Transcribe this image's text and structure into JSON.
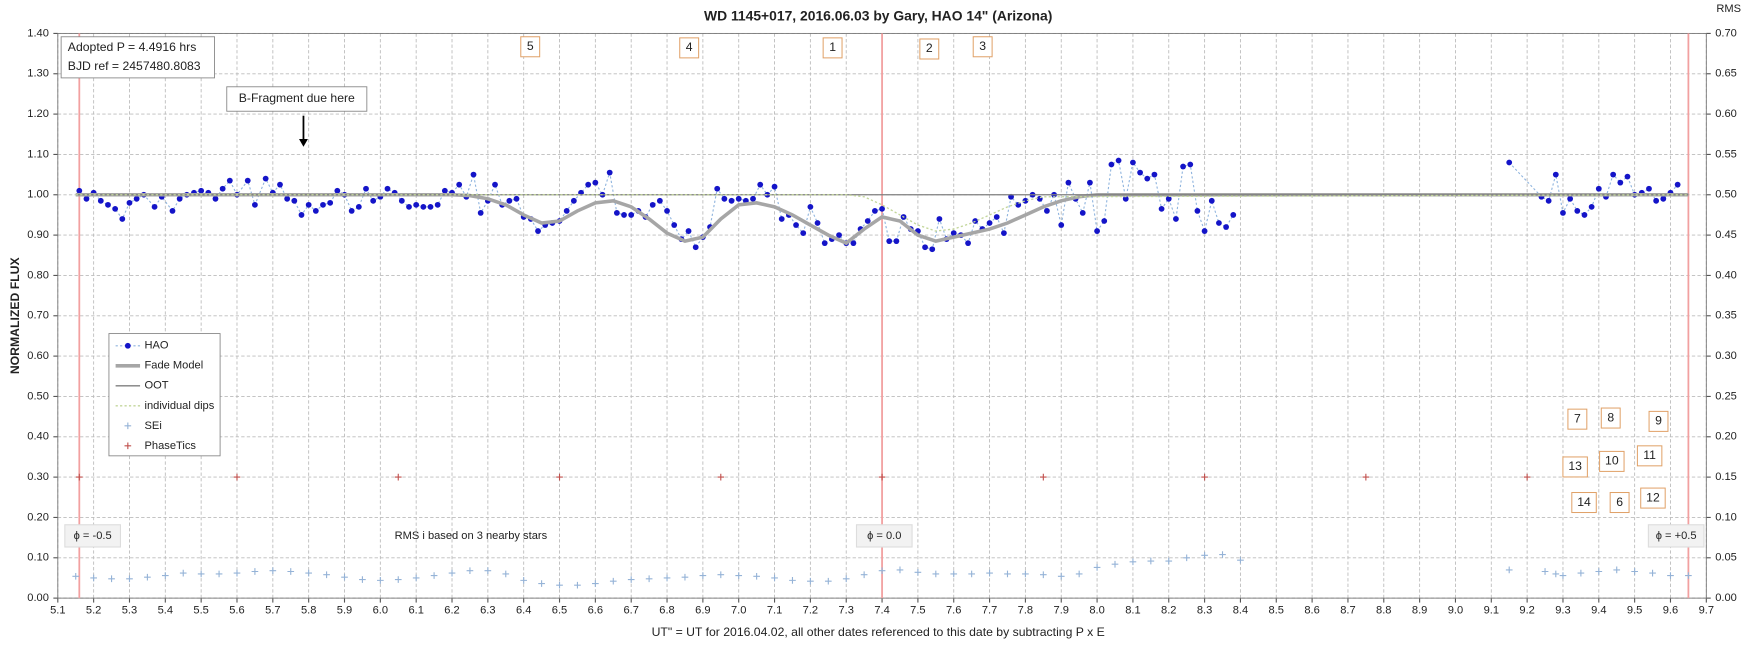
{
  "chart_data": {
    "type": "line",
    "title": "WD 1145+017,  2016.06.03  by Gary, HAO 14\" (Arizona)",
    "x_label": "UT\" = UT for 2016.04.02, all other dates referenced to this date by subtracting P x E",
    "y_label": "NORMALIZED FLUX",
    "y2_label": "RMS",
    "xlim": [
      5.1,
      9.7
    ],
    "ylim": [
      0,
      1.4
    ],
    "y2lim": [
      0,
      0.7
    ],
    "grid": true,
    "xticks": [
      5.1,
      5.2,
      5.3,
      5.4,
      5.5,
      5.6,
      5.7,
      5.8,
      5.9,
      {
        "value": 6.0,
        "label": "6.0"
      },
      6.1,
      6.2,
      6.3,
      6.4,
      6.5,
      6.6,
      6.7,
      6.8,
      6.9,
      {
        "value": 7.0,
        "label": "7.0"
      },
      7.1,
      7.2,
      7.3,
      7.4,
      7.5,
      7.6,
      7.7,
      7.8,
      7.9,
      {
        "value": 8.0,
        "label": "8.0"
      },
      8.1,
      8.2,
      8.3,
      8.4,
      8.5,
      8.6,
      8.7,
      8.8,
      8.9,
      {
        "value": 9.0,
        "label": "9.0"
      },
      9.1,
      9.2,
      9.3,
      9.4,
      9.5,
      9.6,
      9.7
    ],
    "yticks": [
      {
        "value": 0,
        "label": "0.00"
      },
      {
        "value": 0.1,
        "label": "0.10"
      },
      {
        "value": 0.2,
        "label": "0.20"
      },
      {
        "value": 0.3,
        "label": "0.30"
      },
      {
        "value": 0.4,
        "label": "0.40"
      },
      {
        "value": 0.5,
        "label": "0.50"
      },
      {
        "value": 0.6,
        "label": "0.60"
      },
      {
        "value": 0.7,
        "label": "0.70"
      },
      {
        "value": 0.8,
        "label": "0.80"
      },
      {
        "value": 0.9,
        "label": "0.90"
      },
      {
        "value": 1.0,
        "label": "1.00"
      },
      {
        "value": 1.1,
        "label": "1.10"
      },
      {
        "value": 1.2,
        "label": "1.20"
      },
      {
        "value": 1.3,
        "label": "1.30"
      },
      {
        "value": 1.4,
        "label": "1.40"
      }
    ],
    "y2ticks": [
      {
        "value": 0,
        "label": "0.00"
      },
      {
        "value": 0.05,
        "label": "0.05"
      },
      {
        "value": 0.1,
        "label": "0.10"
      },
      {
        "value": 0.15,
        "label": "0.15"
      },
      {
        "value": 0.2,
        "label": "0.20"
      },
      {
        "value": 0.25,
        "label": "0.25"
      },
      {
        "value": 0.3,
        "label": "0.30"
      },
      {
        "value": 0.35,
        "label": "0.35"
      },
      {
        "value": 0.4,
        "label": "0.40"
      },
      {
        "value": 0.45,
        "label": "0.45"
      },
      {
        "value": 0.5,
        "label": "0.50"
      },
      {
        "value": 0.55,
        "label": "0.55"
      },
      {
        "value": 0.6,
        "label": "0.60"
      },
      {
        "value": 0.65,
        "label": "0.65"
      },
      {
        "value": 0.7,
        "label": "0.70"
      }
    ],
    "series": [
      {
        "name": "HAO",
        "style": "dots-dotted-line",
        "color": "#1414c8",
        "line_color": "#8fb4de",
        "x": [
          5.16,
          5.18,
          5.2,
          5.22,
          5.24,
          5.26,
          5.28,
          5.3,
          5.32,
          5.34,
          5.37,
          5.39,
          5.42,
          5.44,
          5.46,
          5.48,
          5.5,
          5.52,
          5.54,
          5.56,
          5.58,
          5.6,
          5.63,
          5.65,
          5.68,
          5.7,
          5.72,
          5.74,
          5.76,
          5.78,
          5.8,
          5.82,
          5.84,
          5.86,
          5.88,
          5.9,
          5.92,
          5.94,
          5.96,
          5.98,
          6.0,
          6.02,
          6.04,
          6.06,
          6.08,
          6.1,
          6.12,
          6.14,
          6.16,
          6.18,
          6.2,
          6.22,
          6.24,
          6.26,
          6.28,
          6.3,
          6.32,
          6.34,
          6.36,
          6.38,
          6.4,
          6.42,
          6.44,
          6.46,
          6.48,
          6.5,
          6.52,
          6.54,
          6.56,
          6.58,
          6.6,
          6.62,
          6.64,
          6.66,
          6.68,
          6.7,
          6.72,
          6.74,
          6.76,
          6.78,
          6.8,
          6.82,
          6.84,
          6.86,
          6.88,
          6.9,
          6.92,
          6.94,
          6.96,
          6.98,
          7.0,
          7.02,
          7.04,
          7.06,
          7.08,
          7.1,
          7.12,
          7.14,
          7.16,
          7.18,
          7.2,
          7.22,
          7.24,
          7.26,
          7.28,
          7.3,
          7.32,
          7.34,
          7.36,
          7.38,
          7.4,
          7.42,
          7.44,
          7.46,
          7.48,
          7.5,
          7.52,
          7.54,
          7.56,
          7.58,
          7.6,
          7.62,
          7.64,
          7.66,
          7.68,
          7.7,
          7.72,
          7.74,
          7.76,
          7.78,
          7.8,
          7.82,
          7.84,
          7.86,
          7.88,
          7.9,
          7.92,
          7.94,
          7.96,
          7.98,
          8.0,
          8.02,
          8.04,
          8.06,
          8.08,
          8.1,
          8.12,
          8.14,
          8.16,
          8.18,
          8.2,
          8.22,
          8.24,
          8.26,
          8.28,
          8.3,
          8.32,
          8.34,
          8.36,
          8.38,
          null,
          9.15,
          9.24,
          9.26,
          9.28,
          9.3,
          9.32,
          9.34,
          9.36,
          9.38,
          9.4,
          9.42,
          9.44,
          9.46,
          9.48,
          9.5,
          9.52,
          9.54,
          9.56,
          9.58,
          9.6,
          9.62
        ],
        "values": [
          1.01,
          0.99,
          1.005,
          0.985,
          0.975,
          0.965,
          0.94,
          0.98,
          0.99,
          1.0,
          0.97,
          0.995,
          0.96,
          0.99,
          1.0,
          1.005,
          1.01,
          1.005,
          0.99,
          1.015,
          1.035,
          1.0,
          1.035,
          0.975,
          1.04,
          1.005,
          1.025,
          0.99,
          0.985,
          0.95,
          0.975,
          0.96,
          0.975,
          0.98,
          1.01,
          1.0,
          0.96,
          0.97,
          1.015,
          0.985,
          0.995,
          1.015,
          1.005,
          0.985,
          0.97,
          0.975,
          0.97,
          0.97,
          0.975,
          1.01,
          1.005,
          1.025,
          0.995,
          1.05,
          0.955,
          0.985,
          1.025,
          0.975,
          0.985,
          0.99,
          0.945,
          0.94,
          0.91,
          0.925,
          0.93,
          0.935,
          0.96,
          0.985,
          1.005,
          1.025,
          1.03,
          1.0,
          1.055,
          0.955,
          0.95,
          0.95,
          0.96,
          0.945,
          0.975,
          0.985,
          0.96,
          0.925,
          0.89,
          0.91,
          0.87,
          0.895,
          0.92,
          1.015,
          0.99,
          0.985,
          0.99,
          0.985,
          0.99,
          1.025,
          1.0,
          1.02,
          0.94,
          0.95,
          0.925,
          0.905,
          0.97,
          0.93,
          0.88,
          0.89,
          0.9,
          0.88,
          0.88,
          0.915,
          0.935,
          0.96,
          0.965,
          0.885,
          0.885,
          0.945,
          0.915,
          0.91,
          0.87,
          0.865,
          0.94,
          0.89,
          0.905,
          0.9,
          0.88,
          0.935,
          0.915,
          0.93,
          0.945,
          0.905,
          0.995,
          0.975,
          0.985,
          1.0,
          0.99,
          0.96,
          1.0,
          0.925,
          1.03,
          0.99,
          0.955,
          1.03,
          0.91,
          0.935,
          1.075,
          1.085,
          0.99,
          1.08,
          1.055,
          1.04,
          1.05,
          0.965,
          0.99,
          0.94,
          1.07,
          1.075,
          0.96,
          0.91,
          0.985,
          0.93,
          0.92,
          0.95,
          null,
          1.08,
          0.995,
          0.985,
          1.05,
          0.955,
          0.99,
          0.96,
          0.95,
          0.97,
          1.015,
          0.995,
          1.05,
          1.03,
          1.045,
          1.0,
          1.005,
          1.015,
          0.985,
          0.99,
          1.005,
          1.025
        ]
      },
      {
        "name": "Fade Model",
        "style": "thick-line",
        "color": "#a6a6a6",
        "x": [
          5.15,
          6.2,
          6.25,
          6.3,
          6.35,
          6.4,
          6.45,
          6.5,
          6.55,
          6.6,
          6.65,
          6.7,
          6.75,
          6.8,
          6.85,
          6.9,
          6.95,
          7.0,
          7.05,
          7.1,
          7.15,
          7.2,
          7.25,
          7.3,
          7.35,
          7.4,
          7.45,
          7.5,
          7.55,
          7.6,
          7.65,
          7.7,
          7.75,
          7.8,
          7.85,
          7.9,
          7.95,
          8.0,
          9.65
        ],
        "values": [
          1.0,
          1.0,
          0.998,
          0.99,
          0.975,
          0.95,
          0.93,
          0.935,
          0.96,
          0.98,
          0.985,
          0.97,
          0.94,
          0.905,
          0.885,
          0.895,
          0.94,
          0.975,
          0.98,
          0.97,
          0.95,
          0.925,
          0.9,
          0.88,
          0.915,
          0.945,
          0.935,
          0.9,
          0.885,
          0.895,
          0.905,
          0.915,
          0.93,
          0.95,
          0.97,
          0.985,
          0.995,
          1.0,
          1.0
        ]
      },
      {
        "name": "OOT",
        "style": "line",
        "color": "#7f7f7f",
        "x": [
          5.15,
          9.65
        ],
        "values": [
          1.0,
          1.0
        ]
      },
      {
        "name": "individual dips",
        "style": "dotted-line",
        "color": "#c3d69b",
        "x": [
          5.15,
          7.3,
          7.35,
          7.4,
          7.45,
          7.5,
          7.55,
          7.6,
          7.65,
          7.7,
          7.75,
          7.8,
          7.85,
          9.65
        ],
        "values": [
          1.0,
          1.0,
          0.995,
          0.975,
          0.95,
          0.925,
          0.91,
          0.915,
          0.93,
          0.95,
          0.97,
          0.985,
          0.995,
          1.0
        ]
      },
      {
        "name": "SEi",
        "style": "plus",
        "color": "#95b3d7",
        "axis": "y2",
        "x": [
          5.15,
          5.2,
          5.25,
          5.3,
          5.35,
          5.4,
          5.45,
          5.5,
          5.55,
          5.6,
          5.65,
          5.7,
          5.75,
          5.8,
          5.85,
          5.9,
          5.95,
          6.0,
          6.05,
          6.1,
          6.15,
          6.2,
          6.25,
          6.3,
          6.35,
          6.4,
          6.45,
          6.5,
          6.55,
          6.6,
          6.65,
          6.7,
          6.75,
          6.8,
          6.85,
          6.9,
          6.95,
          7.0,
          7.05,
          7.1,
          7.15,
          7.2,
          7.25,
          7.3,
          7.35,
          7.4,
          7.45,
          7.5,
          7.55,
          7.6,
          7.65,
          7.7,
          7.75,
          7.8,
          7.85,
          7.9,
          7.95,
          8.0,
          8.05,
          8.1,
          8.15,
          8.2,
          8.25,
          8.3,
          8.35,
          8.4,
          9.15,
          9.25,
          9.28,
          9.3,
          9.35,
          9.4,
          9.45,
          9.5,
          9.55,
          9.6,
          9.65
        ],
        "values": [
          0.027,
          0.025,
          0.024,
          0.024,
          0.026,
          0.028,
          0.031,
          0.03,
          0.03,
          0.031,
          0.033,
          0.034,
          0.033,
          0.031,
          0.029,
          0.026,
          0.023,
          0.022,
          0.023,
          0.025,
          0.028,
          0.031,
          0.034,
          0.034,
          0.03,
          0.022,
          0.018,
          0.016,
          0.016,
          0.018,
          0.021,
          0.023,
          0.024,
          0.025,
          0.026,
          0.028,
          0.029,
          0.028,
          0.027,
          0.025,
          0.022,
          0.021,
          0.021,
          0.024,
          0.029,
          0.034,
          0.035,
          0.032,
          0.03,
          0.03,
          0.03,
          0.031,
          0.03,
          0.03,
          0.029,
          0.027,
          0.03,
          0.038,
          0.042,
          0.045,
          0.046,
          0.046,
          0.05,
          0.053,
          0.054,
          0.047,
          0.035,
          0.033,
          0.03,
          0.028,
          0.031,
          0.033,
          0.035,
          0.033,
          0.031,
          0.028,
          0.028
        ]
      },
      {
        "name": "PhaseTics",
        "style": "plus",
        "color": "#c0504d",
        "x": [
          5.16,
          5.6,
          6.05,
          6.5,
          6.95,
          7.4,
          7.85,
          8.3,
          8.75,
          9.2
        ],
        "values": [
          0.3,
          0.3,
          0.3,
          0.3,
          0.3,
          0.3,
          0.3,
          0.3,
          0.3,
          0.3
        ]
      }
    ],
    "phase_markers": [
      {
        "x": 5.16,
        "label": "ϕ = -0.5"
      },
      {
        "x": 7.4,
        "label": "ϕ = 0.0"
      },
      {
        "x": 9.65,
        "label": "ϕ = +0.5"
      }
    ],
    "phase_marker_color": "#f2a0a0",
    "info": [
      "Adopted P = 4.4916 hrs",
      "BJD ref = 2457480.8083"
    ],
    "arrow_note": "B-Fragment due here",
    "rms_note": "RMS i based on 3 nearby stars",
    "dip_labels": [
      "5",
      "4",
      "1",
      "2",
      "3",
      "7",
      "8",
      "9",
      "13",
      "10",
      "11",
      "14",
      "6",
      "12"
    ]
  }
}
